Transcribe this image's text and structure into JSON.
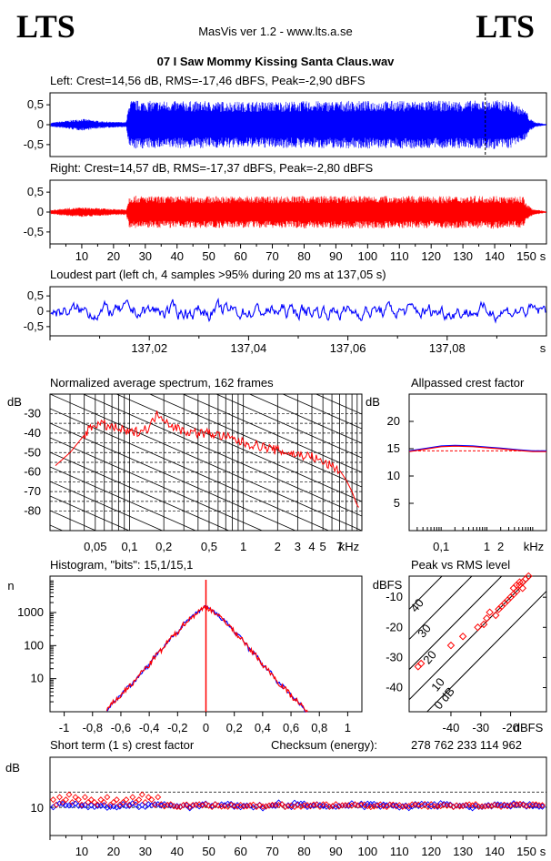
{
  "header": {
    "logo_left": "LTS",
    "logo_right": "LTS",
    "app_title": "MasVis ver 1.2 - www.lts.a.se",
    "file_name": "07 I Saw Mommy Kissing Santa Claus.wav"
  },
  "colors": {
    "left": "#0000ff",
    "right": "#ff0000",
    "blue": "#0000ff",
    "red": "#ff0000"
  },
  "chart_data": [
    {
      "type": "area",
      "id": "left",
      "title": "Left: Crest=14,56 dB, RMS=-17,46 dBFS, Peak=-2,90 dBFS",
      "ylim": [
        -0.8,
        0.8
      ],
      "yticks": [
        "0,5",
        "0",
        "-0,5"
      ],
      "marker_x": 137.05,
      "envelope": {
        "x": [
          0,
          5,
          10,
          15,
          20,
          24,
          25,
          30,
          60,
          100,
          130,
          140,
          145,
          150,
          151,
          153,
          156
        ],
        "amp": [
          0.05,
          0.1,
          0.15,
          0.1,
          0.07,
          0.07,
          0.62,
          0.6,
          0.58,
          0.6,
          0.6,
          0.62,
          0.6,
          0.35,
          0.15,
          0.06,
          0.02
        ]
      }
    },
    {
      "type": "area",
      "id": "right",
      "title": "Right: Crest=14,57 dB, RMS=-17,37 dBFS, Peak=-2,80 dBFS",
      "ylim": [
        -0.8,
        0.8
      ],
      "yticks": [
        "0,5",
        "0",
        "-0,5"
      ],
      "xticks": [
        "10",
        "20",
        "30",
        "40",
        "50",
        "60",
        "70",
        "80",
        "90",
        "100",
        "110",
        "120",
        "130",
        "140",
        "150"
      ],
      "xunit": "s",
      "envelope": {
        "x": [
          0,
          5,
          10,
          15,
          20,
          24,
          25,
          30,
          60,
          100,
          130,
          140,
          145,
          149,
          150,
          152,
          156
        ],
        "amp": [
          0.05,
          0.1,
          0.12,
          0.1,
          0.08,
          0.07,
          0.42,
          0.4,
          0.4,
          0.41,
          0.4,
          0.42,
          0.38,
          0.4,
          0.2,
          0.08,
          0.02
        ]
      }
    },
    {
      "type": "line",
      "id": "loudest",
      "title": "Loudest part (left  ch, 4 samples >95% during 20 ms at 137,05 s)",
      "ylim": [
        -0.8,
        0.8
      ],
      "yticks": [
        "0,5",
        "0",
        "-0,5"
      ],
      "xticks": [
        "137,02",
        "137,04",
        "137,06",
        "137,08"
      ],
      "xunit": "s"
    },
    {
      "type": "line",
      "id": "spectrum",
      "title": "Normalized average spectrum, 162 frames",
      "ylabel": "dB",
      "yticks": [
        "-30",
        "-40",
        "-50",
        "-60",
        "-70",
        "-80"
      ],
      "xticks": [
        "0,05",
        "0,1",
        "0,2",
        "0,5",
        "1",
        "2",
        "3",
        "4",
        "5",
        "7"
      ],
      "xunit": "kHz",
      "x_khz": [
        0.022,
        0.03,
        0.04,
        0.05,
        0.06,
        0.07,
        0.08,
        0.09,
        0.1,
        0.12,
        0.15,
        0.17,
        0.19,
        0.2,
        0.25,
        0.3,
        0.4,
        0.5,
        0.7,
        1,
        1.5,
        2,
        3,
        4,
        5,
        6,
        7,
        8,
        9,
        10,
        11
      ],
      "y_db": [
        -57,
        -50,
        -41,
        -35,
        -36,
        -37,
        -38,
        -39,
        -40,
        -39,
        -37,
        -31,
        -30,
        -33,
        -37,
        -39,
        -40,
        -40,
        -42,
        -45,
        -47,
        -49,
        -51,
        -52,
        -55,
        -57,
        -59,
        -64,
        -70,
        -77,
        -80
      ]
    },
    {
      "type": "line",
      "id": "allpass",
      "title": "Allpassed crest factor",
      "ylabel": "dB",
      "yticks": [
        "20",
        "15",
        "10",
        "5"
      ],
      "xticks": [
        "0,1",
        "1",
        "2"
      ],
      "xunit": "kHz",
      "x_khz": [
        0.02,
        0.05,
        0.1,
        0.2,
        0.5,
        1,
        2,
        5,
        10,
        20
      ],
      "y_db": [
        14.6,
        15.1,
        15.5,
        15.6,
        15.5,
        15.3,
        15.1,
        14.8,
        14.6,
        14.6
      ],
      "reference_db": 14.6
    },
    {
      "type": "line",
      "id": "histogram",
      "title": "Histogram, \"bits\": 15,1/15,1",
      "ylabel": "n",
      "yticks": [
        "1000",
        "100",
        "10"
      ],
      "xticks": [
        "-1",
        "-0,8",
        "-0,6",
        "-0,4",
        "-0,2",
        "0",
        "0,2",
        "0,4",
        "0,6",
        "0,8",
        "1"
      ],
      "x": [
        -0.7,
        -0.6,
        -0.5,
        -0.4,
        -0.3,
        -0.2,
        -0.1,
        -0.05,
        0,
        0.05,
        0.1,
        0.2,
        0.3,
        0.4,
        0.5,
        0.6,
        0.7
      ],
      "n": [
        1,
        3,
        8,
        25,
        80,
        250,
        700,
        1100,
        1500,
        1100,
        700,
        250,
        80,
        25,
        8,
        3,
        1
      ]
    },
    {
      "type": "scatter",
      "id": "peakrms",
      "title": "Peak vs RMS level",
      "ylabel": "dBFS",
      "xlabel": "dBFS",
      "yticks": [
        "-10",
        "-20",
        "-30",
        "-40"
      ],
      "xticks": [
        "-40",
        "-30",
        "-20"
      ],
      "diagonals": [
        "40",
        "30",
        "20",
        "10",
        "0 dB"
      ],
      "points": [
        {
          "rms": -51,
          "peak": -33
        },
        {
          "rms": -50,
          "peak": -32
        },
        {
          "rms": -40,
          "peak": -26
        },
        {
          "rms": -36,
          "peak": -23
        },
        {
          "rms": -31,
          "peak": -20
        },
        {
          "rms": -29,
          "peak": -19
        },
        {
          "rms": -28,
          "peak": -17
        },
        {
          "rms": -27,
          "peak": -15
        },
        {
          "rms": -25,
          "peak": -16
        },
        {
          "rms": -24,
          "peak": -14
        },
        {
          "rms": -23,
          "peak": -13
        },
        {
          "rms": -22,
          "peak": -12
        },
        {
          "rms": -21,
          "peak": -11
        },
        {
          "rms": -20,
          "peak": -10
        },
        {
          "rms": -19,
          "peak": -9
        },
        {
          "rms": -18,
          "peak": -8
        },
        {
          "rms": -17,
          "peak": -6
        },
        {
          "rms": -16,
          "peak": -5
        },
        {
          "rms": -15,
          "peak": -4
        },
        {
          "rms": -14,
          "peak": -3
        },
        {
          "rms": -16,
          "peak": -7
        },
        {
          "rms": -17,
          "peak": -5
        },
        {
          "rms": -18,
          "peak": -6
        },
        {
          "rms": -19,
          "peak": -7
        }
      ]
    },
    {
      "type": "scatter",
      "id": "crest",
      "title": "Short term (1 s) crest factor",
      "checksum_label": "Checksum (energy):",
      "checksum_value": "278 762 233 114 962",
      "ylabel": "dB",
      "yticks": [
        "10"
      ],
      "xticks": [
        "10",
        "20",
        "30",
        "40",
        "50",
        "60",
        "70",
        "80",
        "90",
        "100",
        "110",
        "120",
        "130",
        "140",
        "150"
      ],
      "xunit": "s",
      "left_db": [
        12,
        11,
        12,
        13,
        12,
        11,
        12,
        11,
        13,
        12,
        12,
        12,
        11,
        12,
        11,
        12,
        11,
        11,
        10,
        11,
        11,
        10,
        11
      ],
      "right_db": [
        12,
        13,
        11,
        14,
        12,
        13,
        15,
        12,
        14,
        13,
        11,
        14,
        12,
        13,
        12,
        11,
        13,
        12,
        14,
        11,
        12,
        13,
        11
      ],
      "dashed_db": [
        10,
        16
      ]
    }
  ]
}
